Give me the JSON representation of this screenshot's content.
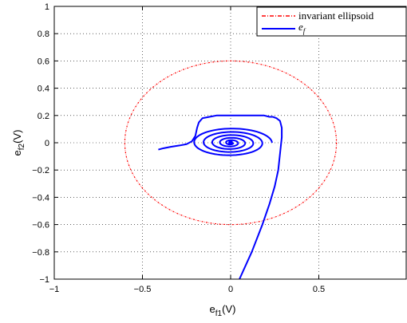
{
  "chart_data": {
    "type": "line",
    "title": "",
    "xlabel": {
      "main": "e",
      "sub": "f1",
      "unit": "(V)"
    },
    "ylabel": {
      "main": "e",
      "sub": "f2",
      "unit": "(V)"
    },
    "xlim": [
      -1,
      1
    ],
    "ylim": [
      -1,
      1
    ],
    "grid": true,
    "grid_style": "dotted",
    "legend_position": "top-right",
    "x_ticks": [
      {
        "value": -1,
        "label": "−1"
      },
      {
        "value": -0.5,
        "label": "−0.5"
      },
      {
        "value": 0,
        "label": "0"
      },
      {
        "value": 0.5,
        "label": "0.5"
      }
    ],
    "y_ticks": [
      {
        "value": 1,
        "label": "1"
      },
      {
        "value": 0.8,
        "label": "0.8"
      },
      {
        "value": 0.6,
        "label": "0.6"
      },
      {
        "value": 0.4,
        "label": "0.4"
      },
      {
        "value": 0.2,
        "label": "0.2"
      },
      {
        "value": 0,
        "label": "0"
      },
      {
        "value": -0.2,
        "label": "−0.2"
      },
      {
        "value": -0.4,
        "label": "−0.4"
      },
      {
        "value": -0.6,
        "label": "−0.6"
      },
      {
        "value": -0.8,
        "label": "−0.8"
      },
      {
        "value": -1,
        "label": "−1"
      }
    ],
    "series": [
      {
        "name": "invariant ellipsoid",
        "kind": "ellipse",
        "color": "#ff0000",
        "line_style": "dash-dot",
        "center": [
          0,
          0
        ],
        "radius_x": 0.6,
        "radius_y": 0.6
      },
      {
        "name": "e",
        "name_sub": "f",
        "kind": "path",
        "color": "#0000ff",
        "line_style": "solid",
        "x": [
          0.05,
          0.12,
          0.18,
          0.22,
          0.25,
          0.27,
          0.28,
          0.29,
          0.29,
          0.28,
          0.26,
          0.24,
          0.22,
          0.19,
          0.16,
          0.12,
          0.08,
          0.04,
          0.0,
          -0.04,
          -0.08,
          -0.12,
          -0.16,
          -0.18,
          -0.19,
          -0.2,
          -0.22,
          -0.25,
          -0.29,
          -0.34,
          -0.38,
          -0.41
        ],
        "y": [
          -1.0,
          -0.8,
          -0.6,
          -0.45,
          -0.32,
          -0.2,
          -0.08,
          0.04,
          0.11,
          0.16,
          0.18,
          0.19,
          0.19,
          0.2,
          0.2,
          0.2,
          0.2,
          0.2,
          0.2,
          0.2,
          0.2,
          0.19,
          0.18,
          0.15,
          0.11,
          0.05,
          0.01,
          -0.01,
          -0.02,
          -0.03,
          -0.04,
          -0.05
        ],
        "spiral": {
          "center": [
            0.0,
            0.0
          ],
          "outer_rx": 0.22,
          "outer_ry": 0.1,
          "turns": 5,
          "inner_radius": 0.015
        }
      }
    ]
  }
}
